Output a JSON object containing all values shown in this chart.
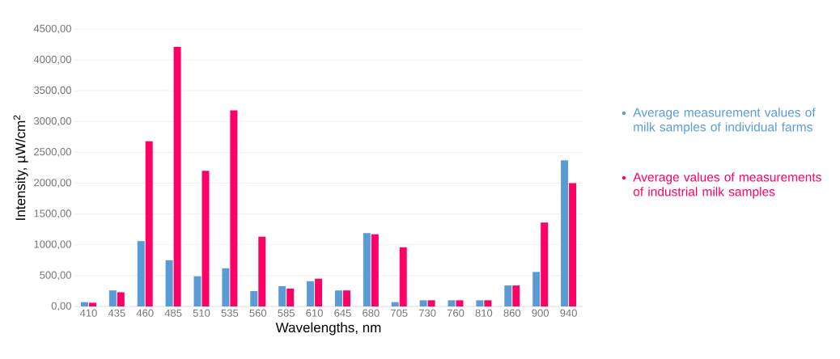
{
  "chart_data": {
    "type": "bar",
    "xlabel": "Wavelengths, nm",
    "ylabel": "Intensity, µW/cm$^{2}$",
    "categories": [
      "410",
      "435",
      "460",
      "485",
      "510",
      "535",
      "560",
      "585",
      "610",
      "645",
      "680",
      "705",
      "730",
      "760",
      "810",
      "860",
      "900",
      "940"
    ],
    "series": [
      {
        "name": "Average measurement values of milk samples of individual farms",
        "color": "#5b9bd5",
        "values": [
          70,
          260,
          1060,
          750,
          490,
          620,
          250,
          330,
          410,
          260,
          1190,
          70,
          100,
          100,
          100,
          340,
          560,
          2370
        ]
      },
      {
        "name": "Average values of measurements of industrial milk samples",
        "color": "#ff0066",
        "values": [
          60,
          230,
          2680,
          4210,
          2200,
          3180,
          1130,
          290,
          450,
          260,
          1170,
          960,
          100,
          100,
          100,
          340,
          1360,
          2000
        ]
      }
    ],
    "ylim": [
      0,
      4500
    ],
    "yticks": [
      {
        "value": 0,
        "label": "0,00"
      },
      {
        "value": 500,
        "label": "500,00"
      },
      {
        "value": 1000,
        "label": "1000,00"
      },
      {
        "value": 1500,
        "label": "1500,00"
      },
      {
        "value": 2000,
        "label": "2000,00"
      },
      {
        "value": 2500,
        "label": "2500,00"
      },
      {
        "value": 3000,
        "label": "3000,00"
      },
      {
        "value": 3500,
        "label": "3500,00"
      },
      {
        "value": 4000,
        "label": "4000,00"
      },
      {
        "value": 4500,
        "label": "4500,00"
      }
    ],
    "grid": "y",
    "legend": "right"
  }
}
